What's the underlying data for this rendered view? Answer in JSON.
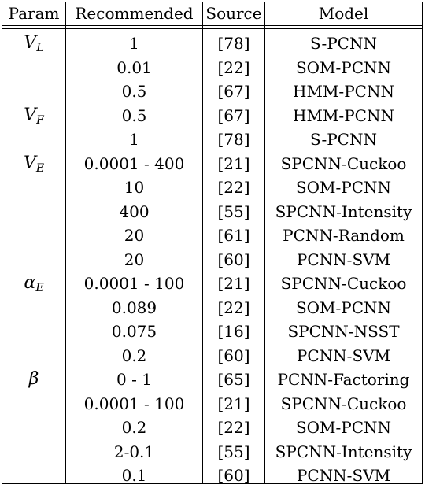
{
  "headers": [
    "Param",
    "Recommended",
    "Source",
    "Model"
  ],
  "rows": [
    {
      "param": "V",
      "param_sub": "L",
      "recommended": "1",
      "source": "[78]",
      "model": "S-PCNN"
    },
    {
      "param": "",
      "param_sub": "",
      "recommended": "0.01",
      "source": "[22]",
      "model": "SOM-PCNN"
    },
    {
      "param": "",
      "param_sub": "",
      "recommended": "0.5",
      "source": "[67]",
      "model": "HMM-PCNN"
    },
    {
      "param": "V",
      "param_sub": "F",
      "recommended": "0.5",
      "source": "[67]",
      "model": "HMM-PCNN"
    },
    {
      "param": "",
      "param_sub": "",
      "recommended": "1",
      "source": "[78]",
      "model": "S-PCNN"
    },
    {
      "param": "V",
      "param_sub": "E",
      "recommended": "0.0001 - 400",
      "source": "[21]",
      "model": "SPCNN-Cuckoo"
    },
    {
      "param": "",
      "param_sub": "",
      "recommended": "10",
      "source": "[22]",
      "model": "SOM-PCNN"
    },
    {
      "param": "",
      "param_sub": "",
      "recommended": "400",
      "source": "[55]",
      "model": "SPCNN-Intensity"
    },
    {
      "param": "",
      "param_sub": "",
      "recommended": "20",
      "source": "[61]",
      "model": "PCNN-Random"
    },
    {
      "param": "",
      "param_sub": "",
      "recommended": "20",
      "source": "[60]",
      "model": "PCNN-SVM"
    },
    {
      "param": "α",
      "param_sub": "E",
      "recommended": "0.0001 - 100",
      "source": "[21]",
      "model": "SPCNN-Cuckoo"
    },
    {
      "param": "",
      "param_sub": "",
      "recommended": "0.089",
      "source": "[22]",
      "model": "SOM-PCNN"
    },
    {
      "param": "",
      "param_sub": "",
      "recommended": "0.075",
      "source": "[16]",
      "model": "SPCNN-NSST"
    },
    {
      "param": "",
      "param_sub": "",
      "recommended": "0.2",
      "source": "[60]",
      "model": "PCNN-SVM"
    },
    {
      "param": "β",
      "param_sub": "",
      "recommended": "0 - 1",
      "source": "[65]",
      "model": "PCNN-Factoring"
    },
    {
      "param": "",
      "param_sub": "",
      "recommended": "0.0001 - 100",
      "source": "[21]",
      "model": "SPCNN-Cuckoo"
    },
    {
      "param": "",
      "param_sub": "",
      "recommended": "0.2",
      "source": "[22]",
      "model": "SOM-PCNN"
    },
    {
      "param": "",
      "param_sub": "",
      "recommended": "2-0.1",
      "source": "[55]",
      "model": "SPCNN-Intensity"
    },
    {
      "param": "",
      "param_sub": "",
      "recommended": "0.1",
      "source": "[60]",
      "model": "PCNN-SVM"
    }
  ]
}
